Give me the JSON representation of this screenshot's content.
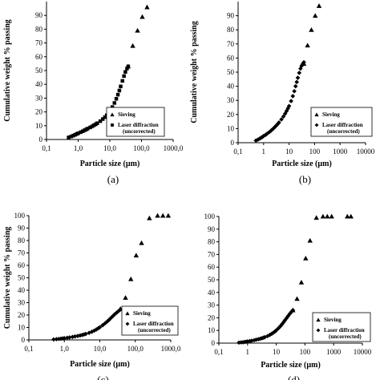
{
  "figure": {
    "background": "#ffffff",
    "marker_color": "#000000"
  },
  "chart_data": [
    {
      "panel_label": "(a)",
      "type": "scatter",
      "xlabel": "Particle size (µm)",
      "ylabel": "Cumulative weight % passing",
      "x_scale": "log",
      "xlim": [
        0.1,
        1000
      ],
      "ylim": [
        0,
        100
      ],
      "x_ticks": [
        "0,1",
        "1,0",
        "10,0",
        "100,0",
        "1000,0"
      ],
      "y_ticks": [
        "0",
        "10",
        "20",
        "30",
        "40",
        "50",
        "60",
        "70",
        "80",
        "90"
      ],
      "legend": {
        "position": "bottom-right",
        "entries": [
          "Sieving",
          "Laser diffraction",
          "(uncorrected)"
        ]
      },
      "series": [
        {
          "name": "Sieving",
          "marker": "triangle",
          "x": [
            38,
            53,
            75,
            106,
            150
          ],
          "y": [
            53,
            68,
            79,
            89,
            96
          ]
        },
        {
          "name": "Laser diffraction (uncorrected)",
          "marker": "square",
          "x": [
            0.5,
            0.6,
            0.7,
            0.8,
            0.9,
            1.0,
            1.2,
            1.4,
            1.6,
            1.8,
            2.0,
            2.4,
            2.8,
            3.2,
            3.6,
            4.0,
            5.0,
            6.0,
            7.0,
            8.0,
            9.0,
            10,
            12,
            14,
            16,
            18,
            20,
            22,
            25,
            28,
            31,
            35,
            38
          ],
          "y": [
            1.5,
            2.2,
            2.8,
            3.4,
            4.0,
            4.5,
            5.3,
            6.0,
            6.7,
            7.3,
            7.9,
            8.8,
            9.6,
            10.4,
            11.1,
            11.8,
            13.3,
            14.8,
            16.2,
            17.6,
            19.0,
            20.5,
            23.5,
            26.5,
            29.5,
            32.5,
            35.5,
            38.5,
            42.5,
            46.0,
            49.0,
            51.5,
            53.0
          ]
        }
      ]
    },
    {
      "panel_label": "(b)",
      "type": "scatter",
      "xlabel": "Particle size (µm)",
      "ylabel": "Cumulative weight % passing",
      "x_scale": "log",
      "xlim": [
        0.1,
        10000
      ],
      "ylim": [
        0,
        100
      ],
      "x_ticks": [
        "0,1",
        "1",
        "10",
        "100",
        "1000",
        "10000"
      ],
      "y_ticks": [
        "0",
        "10",
        "20",
        "30",
        "40",
        "50",
        "60",
        "70",
        "80",
        "90"
      ],
      "legend": {
        "position": "bottom-right",
        "entries": [
          "Sieving",
          "Laser diffraction",
          "(uncorrected)"
        ]
      },
      "series": [
        {
          "name": "Sieving",
          "marker": "triangle",
          "x": [
            38,
            53,
            75,
            106,
            150
          ],
          "y": [
            56,
            69,
            80,
            90,
            97
          ]
        },
        {
          "name": "Laser diffraction (uncorrected)",
          "marker": "diamond",
          "x": [
            0.5,
            0.6,
            0.7,
            0.8,
            0.9,
            1.0,
            1.2,
            1.4,
            1.7,
            2.0,
            2.4,
            2.8,
            3.2,
            3.6,
            4.0,
            5.0,
            6.0,
            7.0,
            8.0,
            9.0,
            10,
            12,
            14,
            16,
            18,
            20,
            22,
            25,
            28,
            31,
            35,
            38
          ],
          "y": [
            1.5,
            2.2,
            2.9,
            3.5,
            4.1,
            4.7,
            5.6,
            6.5,
            7.6,
            8.7,
            10.0,
            11.2,
            12.3,
            13.3,
            14.3,
            16.5,
            18.6,
            20.6,
            22.5,
            24.3,
            26.0,
            29.5,
            33.0,
            36.5,
            40.0,
            43.0,
            46.0,
            49.5,
            52.5,
            54.5,
            56.0,
            57.0
          ]
        }
      ]
    },
    {
      "panel_label": "(c)",
      "type": "scatter",
      "xlabel": "Particle size (µm)",
      "ylabel": "Cumulative weight % passing",
      "x_scale": "log",
      "xlim": [
        0.1,
        1000
      ],
      "ylim": [
        0,
        100
      ],
      "x_ticks": [
        "0,1",
        "1,0",
        "10,0",
        "100,0",
        "1000,0"
      ],
      "y_ticks": [
        "0",
        "10",
        "20",
        "30",
        "40",
        "50",
        "60",
        "70",
        "80",
        "90",
        "100"
      ],
      "legend": {
        "position": "bottom-right",
        "entries": [
          "Sieving",
          "Laser diffraction",
          "(uncorrected)"
        ]
      },
      "series": [
        {
          "name": "Sieving",
          "marker": "triangle",
          "x": [
            38,
            53,
            75,
            106,
            150,
            250,
            425,
            600,
            850
          ],
          "y": [
            25,
            34,
            49,
            68,
            78,
            98,
            100,
            100,
            100
          ]
        },
        {
          "name": "Laser diffraction (uncorrected)",
          "marker": "diamond",
          "x": [
            0.5,
            0.6,
            0.7,
            0.8,
            0.9,
            1.0,
            1.2,
            1.4,
            1.7,
            2.0,
            2.4,
            2.8,
            3.2,
            3.6,
            4.0,
            5.0,
            6.0,
            7.0,
            8.0,
            9.0,
            10,
            12,
            14,
            16,
            18,
            20,
            23,
            26,
            30,
            34,
            38
          ],
          "y": [
            0.4,
            0.6,
            0.8,
            1.0,
            1.2,
            1.4,
            1.7,
            2.0,
            2.4,
            2.8,
            3.2,
            3.6,
            4.0,
            4.4,
            4.8,
            5.7,
            6.6,
            7.5,
            8.4,
            9.3,
            10.2,
            11.8,
            13.3,
            14.7,
            16.0,
            17.3,
            19.0,
            20.5,
            22.0,
            23.3,
            24.5
          ]
        }
      ]
    },
    {
      "panel_label": "(d)",
      "type": "scatter",
      "xlabel": "Particle size (µm)",
      "ylabel": "",
      "x_scale": "log",
      "xlim": [
        0.1,
        10000
      ],
      "ylim": [
        0,
        100
      ],
      "x_ticks": [
        "0,1",
        "1",
        "10",
        "100",
        "1000",
        "10000"
      ],
      "y_ticks": [
        "0",
        "10",
        "20",
        "30",
        "40",
        "50",
        "60",
        "70",
        "80",
        "90",
        "100"
      ],
      "legend": {
        "position": "bottom-right",
        "entries": [
          "Sieving",
          "Laser diffraction",
          "(uncorrected)"
        ]
      },
      "series": [
        {
          "name": "Sieving",
          "marker": "triangle",
          "x": [
            38,
            53,
            75,
            106,
            150,
            250,
            425,
            600,
            850,
            3000,
            4000
          ],
          "y": [
            26,
            35,
            48,
            67,
            81,
            99,
            100,
            100,
            100,
            100,
            100
          ]
        },
        {
          "name": "Laser diffraction (uncorrected)",
          "marker": "diamond",
          "x": [
            0.5,
            0.6,
            0.7,
            0.8,
            0.9,
            1.0,
            1.2,
            1.4,
            1.7,
            2.0,
            2.4,
            2.8,
            3.2,
            3.6,
            4.0,
            5.0,
            6.0,
            7.0,
            8.0,
            9.0,
            10,
            12,
            14,
            16,
            18,
            20,
            23,
            26,
            30,
            34,
            38
          ],
          "y": [
            0.4,
            0.6,
            0.7,
            0.9,
            1.1,
            1.3,
            1.6,
            1.9,
            2.3,
            2.7,
            3.1,
            3.5,
            3.9,
            4.3,
            4.7,
            5.6,
            6.5,
            7.4,
            8.3,
            9.2,
            10.1,
            11.8,
            13.4,
            15.0,
            16.5,
            18.0,
            19.8,
            21.5,
            23.3,
            24.8,
            26.0
          ]
        }
      ]
    }
  ]
}
